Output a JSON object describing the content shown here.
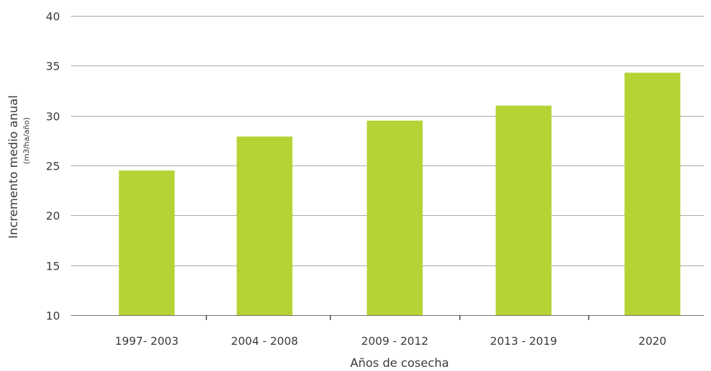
{
  "chart_data": {
    "type": "bar",
    "categories": [
      "1997- 2003",
      "2004 - 2008",
      "2009 - 2012",
      "2013 - 2019",
      "2020"
    ],
    "values": [
      24.5,
      27.9,
      29.5,
      31.0,
      34.3
    ],
    "title": "",
    "xlabel": "Años de cosecha",
    "ylabel": "Incremento medio anual",
    "ylabel_unit": "(m3/ha/año)",
    "ylim": [
      10,
      40
    ],
    "yticks": [
      10,
      15,
      20,
      25,
      30,
      35,
      40
    ],
    "grid": true,
    "legend": "none",
    "bar_color": "#b5d334"
  }
}
